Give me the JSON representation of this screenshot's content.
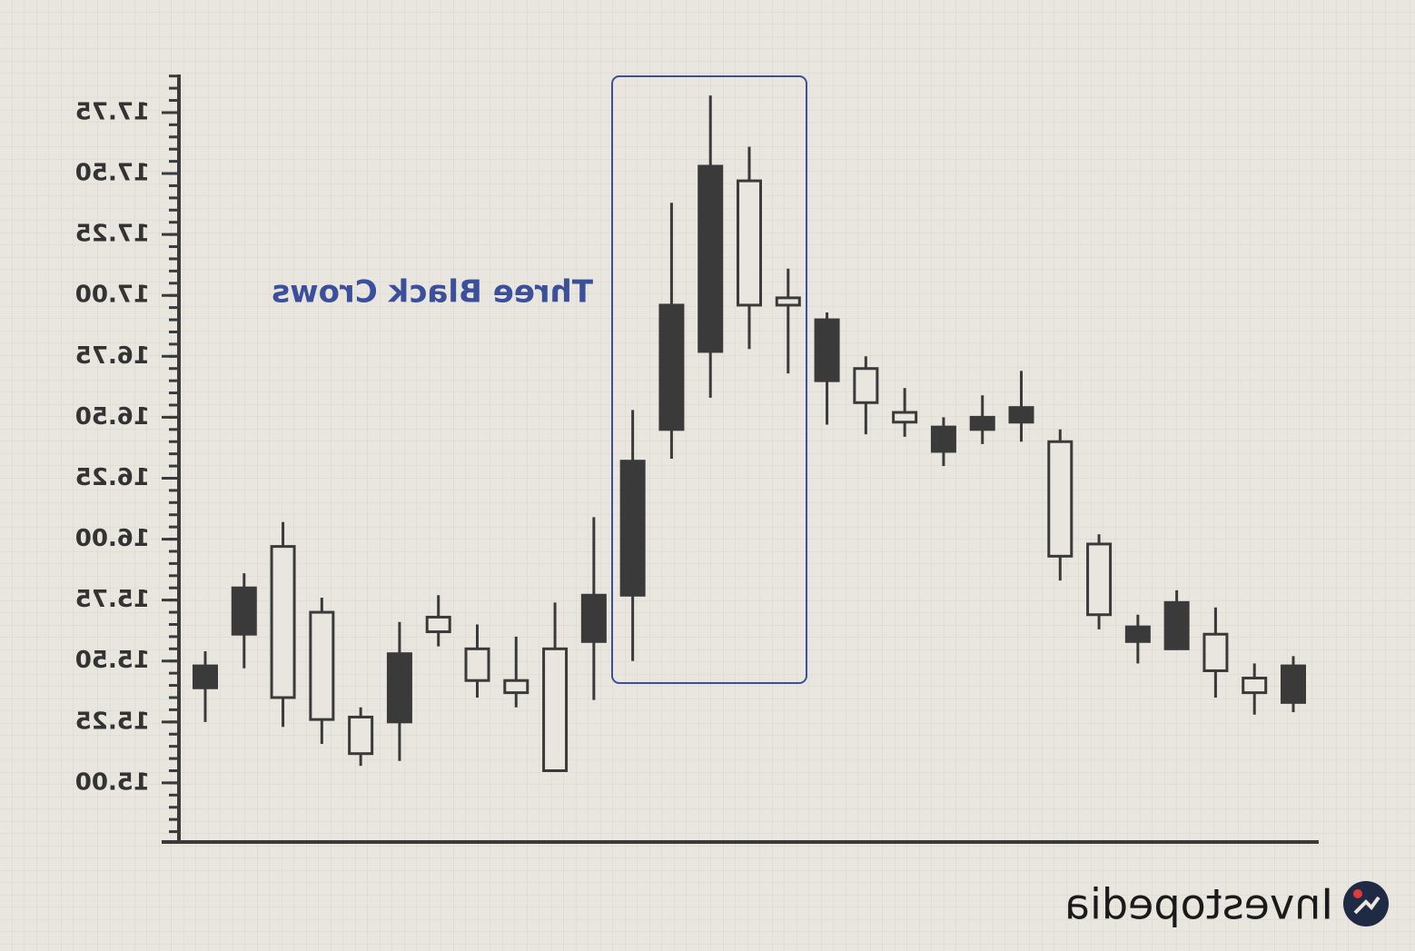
{
  "chart_data": {
    "type": "candlestick",
    "annotation": "Three Black Crows",
    "brand": "Investopedia",
    "ylim": [
      14.75,
      17.9
    ],
    "yticks": [
      {
        "value": 15,
        "label": "15.00"
      },
      15.25,
      {
        "value": 15.5,
        "label": "15.50"
      },
      15.75,
      {
        "value": 16,
        "label": "16.00"
      },
      16.25,
      {
        "value": 16.5,
        "label": "16.50"
      },
      16.75,
      {
        "value": 17,
        "label": "17.00"
      },
      17.25,
      {
        "value": 17.5,
        "label": "17.50"
      },
      17.75
    ],
    "color": "#3a3a3a",
    "open": [
      15.48,
      15.8,
      15.35,
      15.26,
      15.12,
      15.53,
      15.62,
      15.42,
      15.37,
      15.05,
      15.77,
      16.32,
      16.96,
      17.53,
      16.96,
      16.96,
      16.9,
      16.56,
      16.48,
      16.46,
      16.5,
      16.54,
      15.93,
      15.69,
      15.64,
      15.74,
      15.46,
      15.37,
      15.48
    ],
    "high": [
      15.54,
      15.86,
      16.07,
      15.76,
      15.31,
      15.66,
      15.77,
      15.65,
      15.6,
      15.74,
      16.09,
      16.53,
      17.38,
      17.82,
      17.61,
      17.11,
      16.93,
      16.75,
      16.62,
      16.5,
      16.59,
      16.69,
      16.45,
      16.02,
      15.69,
      15.79,
      15.72,
      15.49,
      15.52
    ],
    "low": [
      15.25,
      15.47,
      15.23,
      15.16,
      15.07,
      15.09,
      15.56,
      15.35,
      15.31,
      15.05,
      15.34,
      15.5,
      16.33,
      16.58,
      16.78,
      16.68,
      16.47,
      16.43,
      16.42,
      16.3,
      16.39,
      16.4,
      15.83,
      15.63,
      15.49,
      15.55,
      15.35,
      15.28,
      15.29
    ],
    "close": [
      15.39,
      15.61,
      15.97,
      15.7,
      15.27,
      15.25,
      15.68,
      15.55,
      15.42,
      15.55,
      15.58,
      15.77,
      16.45,
      16.77,
      17.47,
      16.99,
      16.65,
      16.7,
      16.52,
      16.36,
      16.45,
      16.48,
      16.4,
      15.98,
      15.58,
      15.55,
      15.61,
      15.43,
      15.33
    ]
  }
}
